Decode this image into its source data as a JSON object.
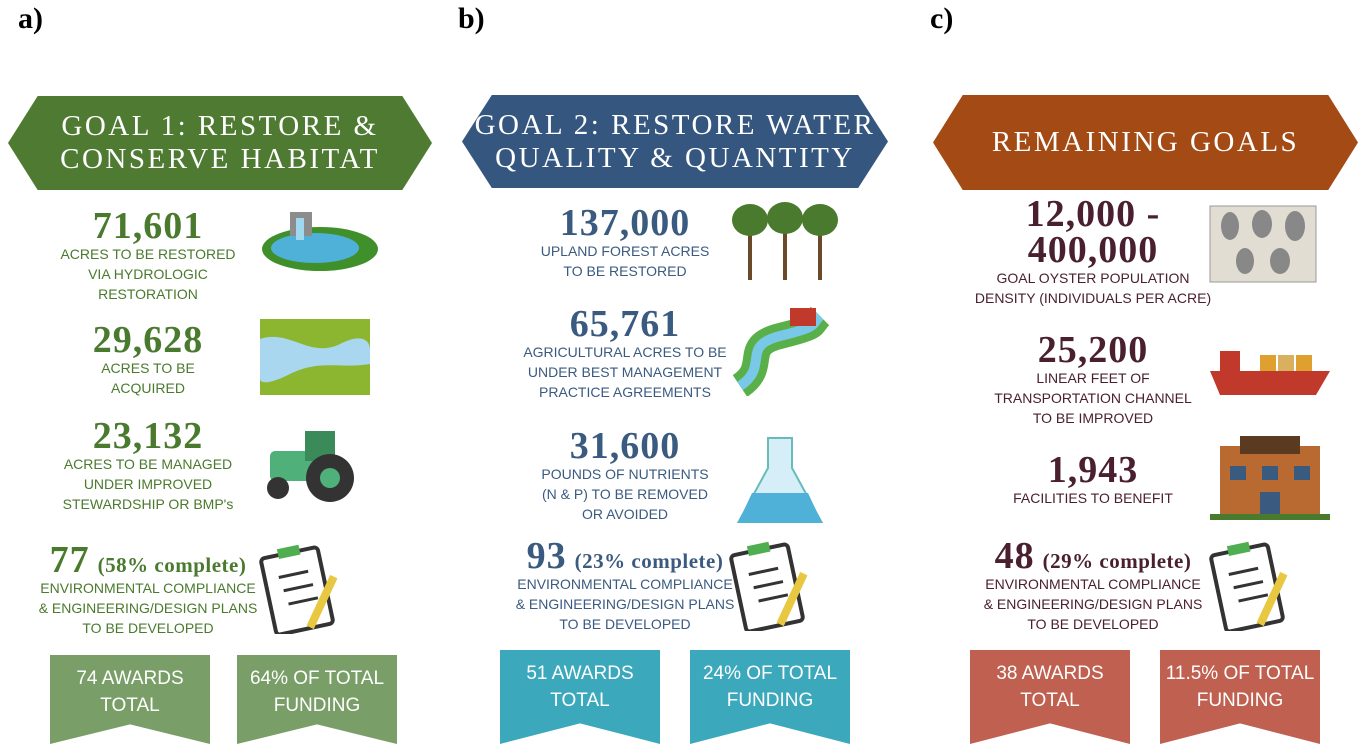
{
  "panels": [
    {
      "label": "a)",
      "title": [
        "GOAL 1: RESTORE &",
        "CONSERVE HABITAT"
      ],
      "stats": [
        {
          "number": [
            "71,601"
          ],
          "description": [
            "ACRES TO BE RESTORED",
            "VIA HYDROLOGIC",
            "RESTORATION"
          ]
        },
        {
          "number": [
            "29,628"
          ],
          "description": [
            "ACRES TO BE",
            "ACQUIRED"
          ]
        },
        {
          "number": [
            "23,132"
          ],
          "description": [
            "ACRES TO BE MANAGED",
            "UNDER IMPROVED",
            "STEWARDSHIP OR BMP's"
          ]
        }
      ],
      "compliance": {
        "number": "77",
        "complete": "(58% complete)",
        "description": [
          "ENVIRONMENTAL COMPLIANCE",
          "& ENGINEERING/DESIGN PLANS",
          "TO BE DEVELOPED"
        ]
      },
      "banners": [
        [
          "74 AWARDS",
          "TOTAL"
        ],
        [
          "64% OF TOTAL",
          "FUNDING"
        ]
      ]
    },
    {
      "label": "b)",
      "title": [
        "GOAL 2: RESTORE WATER",
        "QUALITY & QUANTITY"
      ],
      "stats": [
        {
          "number": [
            "137,000"
          ],
          "description": [
            "UPLAND FOREST ACRES",
            "TO BE RESTORED"
          ]
        },
        {
          "number": [
            "65,761"
          ],
          "description": [
            "AGRICULTURAL ACRES TO BE",
            "UNDER BEST MANAGEMENT",
            "PRACTICE AGREEMENTS"
          ]
        },
        {
          "number": [
            "31,600"
          ],
          "description": [
            "POUNDS OF NUTRIENTS",
            "(N & P) TO BE REMOVED",
            "OR AVOIDED"
          ]
        }
      ],
      "compliance": {
        "number": "93",
        "complete": "(23% complete)",
        "description": [
          "ENVIRONMENTAL COMPLIANCE",
          "& ENGINEERING/DESIGN PLANS",
          "TO BE DEVELOPED"
        ]
      },
      "banners": [
        [
          "51 AWARDS",
          "TOTAL"
        ],
        [
          "24% OF TOTAL",
          "FUNDING"
        ]
      ]
    },
    {
      "label": "c)",
      "title": [
        "REMAINING GOALS"
      ],
      "stats": [
        {
          "number": [
            "12,000 -",
            "400,000"
          ],
          "description": [
            "GOAL OYSTER POPULATION",
            "DENSITY (INDIVIDUALS PER ACRE)"
          ]
        },
        {
          "number": [
            "25,200"
          ],
          "description": [
            "LINEAR FEET OF",
            "TRANSPORTATION CHANNEL",
            "TO BE IMPROVED"
          ]
        },
        {
          "number": [
            "1,943"
          ],
          "description": [
            "FACILITIES TO BENEFIT"
          ]
        }
      ],
      "compliance": {
        "number": "48",
        "complete": "(29% complete)",
        "description": [
          "ENVIRONMENTAL COMPLIANCE",
          "& ENGINEERING/DESIGN PLANS",
          "TO BE DEVELOPED"
        ]
      },
      "banners": [
        [
          "38 AWARDS",
          "TOTAL"
        ],
        [
          "11.5% OF TOTAL",
          "FUNDING"
        ]
      ]
    }
  ]
}
